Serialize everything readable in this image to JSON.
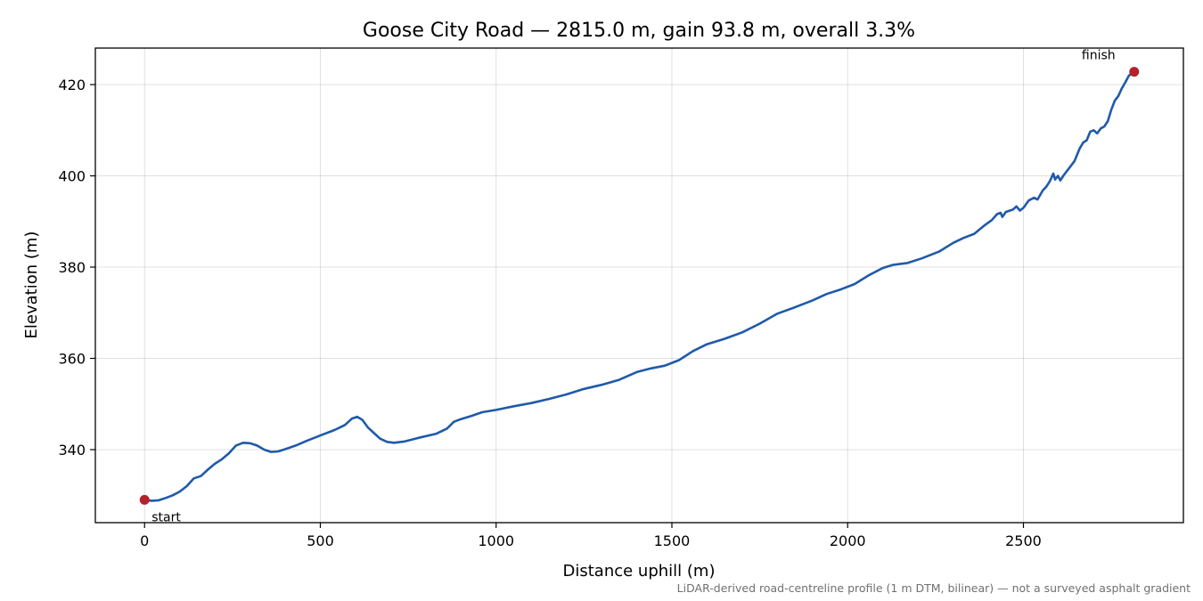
{
  "chart_data": {
    "type": "line",
    "title": "Goose City Road — 2815.0 m, gain 93.8 m, overall 3.3%",
    "xlabel": "Distance uphill (m)",
    "ylabel": "Elevation (m)",
    "xlim": [
      -140,
      2955
    ],
    "ylim": [
      324,
      428
    ],
    "xticks": [
      0,
      500,
      1000,
      1500,
      2000,
      2500
    ],
    "yticks": [
      340,
      360,
      380,
      400,
      420
    ],
    "grid": true,
    "line_color": "#1f5aaa",
    "marker_color": "#b5202a",
    "series": [
      {
        "points": [
          [
            0,
            329.0
          ],
          [
            20,
            328.8
          ],
          [
            40,
            328.9
          ],
          [
            60,
            329.4
          ],
          [
            80,
            330.0
          ],
          [
            100,
            330.8
          ],
          [
            120,
            332.0
          ],
          [
            140,
            333.7
          ],
          [
            160,
            334.2
          ],
          [
            180,
            335.6
          ],
          [
            200,
            336.9
          ],
          [
            220,
            337.9
          ],
          [
            240,
            339.2
          ],
          [
            260,
            340.9
          ],
          [
            280,
            341.5
          ],
          [
            300,
            341.4
          ],
          [
            320,
            340.9
          ],
          [
            340,
            340.0
          ],
          [
            360,
            339.5
          ],
          [
            380,
            339.6
          ],
          [
            400,
            340.1
          ],
          [
            430,
            340.9
          ],
          [
            460,
            341.9
          ],
          [
            500,
            343.1
          ],
          [
            540,
            344.3
          ],
          [
            570,
            345.4
          ],
          [
            590,
            346.8
          ],
          [
            605,
            347.2
          ],
          [
            620,
            346.5
          ],
          [
            635,
            344.9
          ],
          [
            650,
            343.8
          ],
          [
            670,
            342.4
          ],
          [
            690,
            341.7
          ],
          [
            710,
            341.5
          ],
          [
            740,
            341.8
          ],
          [
            780,
            342.6
          ],
          [
            830,
            343.5
          ],
          [
            860,
            344.6
          ],
          [
            880,
            346.1
          ],
          [
            900,
            346.7
          ],
          [
            930,
            347.4
          ],
          [
            960,
            348.2
          ],
          [
            1000,
            348.7
          ],
          [
            1050,
            349.5
          ],
          [
            1100,
            350.2
          ],
          [
            1150,
            351.1
          ],
          [
            1200,
            352.1
          ],
          [
            1250,
            353.3
          ],
          [
            1300,
            354.2
          ],
          [
            1350,
            355.3
          ],
          [
            1400,
            357.0
          ],
          [
            1440,
            357.8
          ],
          [
            1480,
            358.4
          ],
          [
            1520,
            359.6
          ],
          [
            1560,
            361.6
          ],
          [
            1600,
            363.1
          ],
          [
            1650,
            364.3
          ],
          [
            1700,
            365.7
          ],
          [
            1750,
            367.6
          ],
          [
            1800,
            369.8
          ],
          [
            1850,
            371.2
          ],
          [
            1900,
            372.7
          ],
          [
            1940,
            374.1
          ],
          [
            1980,
            375.1
          ],
          [
            2020,
            376.3
          ],
          [
            2060,
            378.2
          ],
          [
            2100,
            379.8
          ],
          [
            2130,
            380.5
          ],
          [
            2170,
            380.9
          ],
          [
            2210,
            381.9
          ],
          [
            2260,
            383.4
          ],
          [
            2300,
            385.3
          ],
          [
            2330,
            386.4
          ],
          [
            2360,
            387.3
          ],
          [
            2390,
            389.2
          ],
          [
            2410,
            390.3
          ],
          [
            2425,
            391.6
          ],
          [
            2435,
            391.9
          ],
          [
            2440,
            391.0
          ],
          [
            2450,
            392.1
          ],
          [
            2470,
            392.6
          ],
          [
            2480,
            393.3
          ],
          [
            2490,
            392.4
          ],
          [
            2500,
            393.0
          ],
          [
            2515,
            394.6
          ],
          [
            2530,
            395.2
          ],
          [
            2540,
            394.8
          ],
          [
            2555,
            396.8
          ],
          [
            2565,
            397.6
          ],
          [
            2575,
            398.8
          ],
          [
            2585,
            400.5
          ],
          [
            2590,
            399.2
          ],
          [
            2598,
            400.0
          ],
          [
            2605,
            399.0
          ],
          [
            2615,
            400.2
          ],
          [
            2630,
            401.7
          ],
          [
            2645,
            403.2
          ],
          [
            2660,
            406.0
          ],
          [
            2670,
            407.3
          ],
          [
            2680,
            407.8
          ],
          [
            2690,
            409.7
          ],
          [
            2700,
            410.0
          ],
          [
            2710,
            409.3
          ],
          [
            2720,
            410.4
          ],
          [
            2730,
            410.8
          ],
          [
            2740,
            412.0
          ],
          [
            2750,
            414.5
          ],
          [
            2760,
            416.5
          ],
          [
            2770,
            417.5
          ],
          [
            2780,
            419.2
          ],
          [
            2790,
            420.5
          ],
          [
            2800,
            422.0
          ],
          [
            2815,
            422.8
          ]
        ]
      }
    ],
    "annotations": [
      {
        "text": "start",
        "x": 0,
        "y": 329.0
      },
      {
        "text": "finish",
        "x": 2815,
        "y": 422.8
      }
    ],
    "caption": "LiDAR-derived road-centreline profile (1 m DTM, bilinear) — not a surveyed asphalt gradient"
  }
}
